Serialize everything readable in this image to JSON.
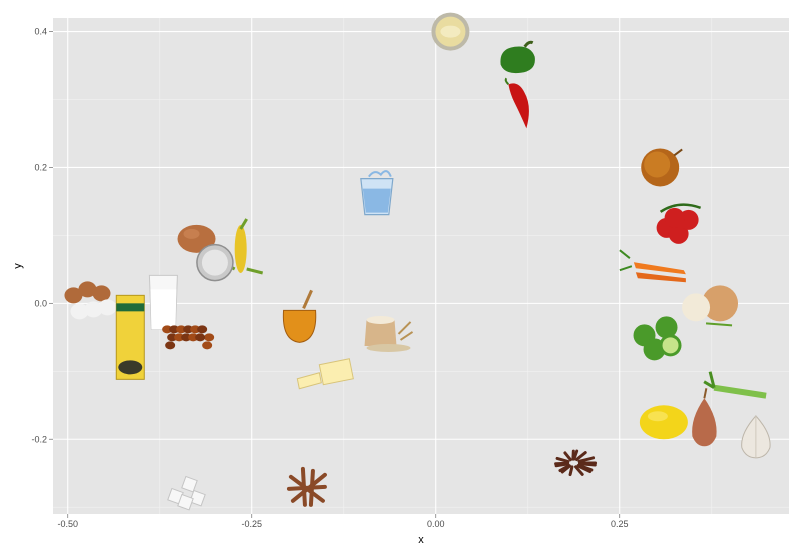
{
  "chart_data": {
    "type": "scatter",
    "title": "",
    "xlabel": "x",
    "ylabel": "y",
    "xlim": [
      -0.52,
      0.48
    ],
    "ylim": [
      -0.31,
      0.42
    ],
    "grid": true,
    "legend": "none",
    "x_ticks": [
      {
        "value": -0.5,
        "label": "-0.50"
      },
      {
        "value": -0.25,
        "label": "-0.25"
      },
      {
        "value": 0.0,
        "label": "0.00"
      },
      {
        "value": 0.25,
        "label": "0.25"
      }
    ],
    "y_ticks": [
      {
        "value": -0.2,
        "label": "-0.2"
      },
      {
        "value": 0.0,
        "label": "0.0"
      },
      {
        "value": 0.2,
        "label": "0.2"
      },
      {
        "value": 0.4,
        "label": "0.4"
      }
    ],
    "points": [
      {
        "item": "mayonnaise",
        "x": 0.02,
        "y": 0.4
      },
      {
        "item": "green-pepper",
        "x": 0.11,
        "y": 0.36
      },
      {
        "item": "red-chili",
        "x": 0.115,
        "y": 0.29
      },
      {
        "item": "onion",
        "x": 0.305,
        "y": 0.2
      },
      {
        "item": "tomatoes",
        "x": 0.33,
        "y": 0.12
      },
      {
        "item": "water-glass",
        "x": -0.08,
        "y": 0.16
      },
      {
        "item": "egg",
        "x": -0.325,
        "y": 0.095
      },
      {
        "item": "corn",
        "x": -0.265,
        "y": 0.08
      },
      {
        "item": "salt",
        "x": -0.3,
        "y": 0.06
      },
      {
        "item": "milk",
        "x": -0.37,
        "y": 0.0
      },
      {
        "item": "eggs",
        "x": -0.465,
        "y": 0.0
      },
      {
        "item": "raisins",
        "x": -0.335,
        "y": -0.05
      },
      {
        "item": "buttermilk",
        "x": -0.415,
        "y": -0.05
      },
      {
        "item": "honey",
        "x": -0.185,
        "y": -0.025
      },
      {
        "item": "flour",
        "x": -0.075,
        "y": -0.045
      },
      {
        "item": "butter",
        "x": -0.15,
        "y": -0.105
      },
      {
        "item": "carrots",
        "x": 0.31,
        "y": 0.04
      },
      {
        "item": "onions",
        "x": 0.37,
        "y": 0.0
      },
      {
        "item": "limes",
        "x": 0.3,
        "y": -0.05
      },
      {
        "item": "celery",
        "x": 0.4,
        "y": -0.13
      },
      {
        "item": "lemon",
        "x": 0.31,
        "y": -0.175
      },
      {
        "item": "shallot",
        "x": 0.365,
        "y": -0.175
      },
      {
        "item": "garlic",
        "x": 0.435,
        "y": -0.195
      },
      {
        "item": "cloves",
        "x": 0.19,
        "y": -0.235
      },
      {
        "item": "cinnamon",
        "x": -0.175,
        "y": -0.27
      },
      {
        "item": "sugar-cubes",
        "x": -0.34,
        "y": -0.275
      }
    ]
  },
  "colors": {
    "panel": "#e5e5e5",
    "grid_major": "#ffffff",
    "grid_minor": "#f2f2f2"
  }
}
